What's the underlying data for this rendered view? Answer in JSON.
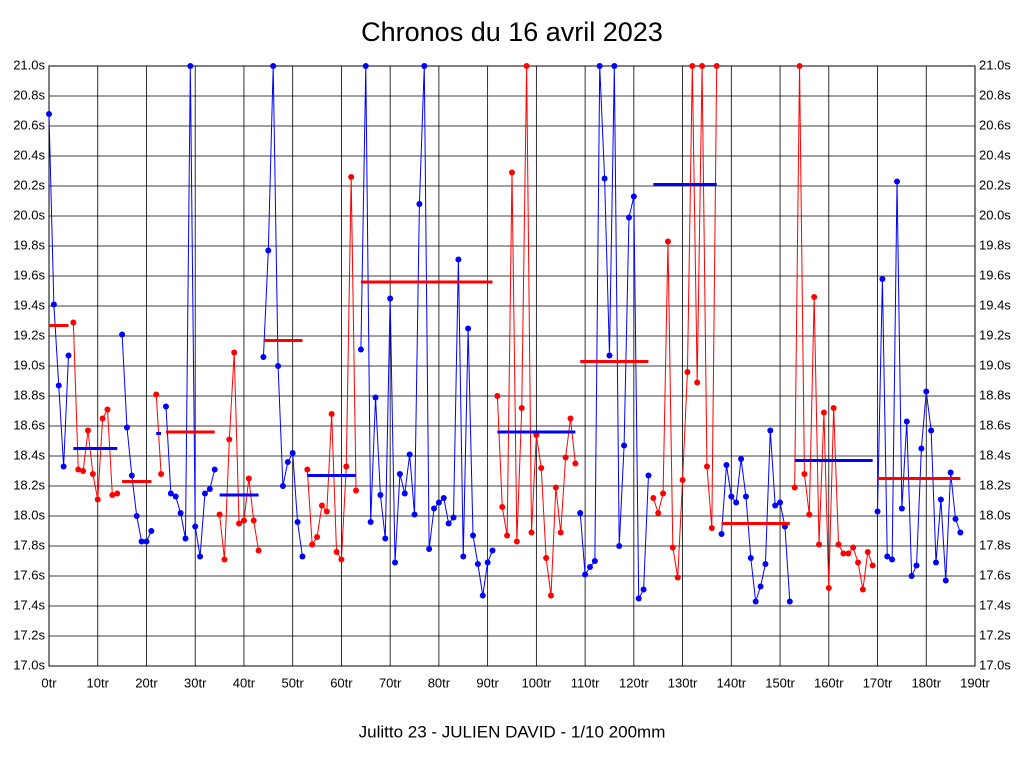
{
  "chart_data": {
    "type": "line",
    "title": "Chronos du 16 avril 2023",
    "footer": "Julitto 23 - JULIEN DAVID - 1/10 200mm",
    "xlim": [
      0,
      190
    ],
    "ylim": [
      17,
      21
    ],
    "xticks": [
      {
        "value": 0,
        "label": "0tr"
      },
      {
        "value": 10,
        "label": "10tr"
      },
      {
        "value": 20,
        "label": "20tr"
      },
      {
        "value": 30,
        "label": "30tr"
      },
      {
        "value": 40,
        "label": "40tr"
      },
      {
        "value": 50,
        "label": "50tr"
      },
      {
        "value": 60,
        "label": "60tr"
      },
      {
        "value": 70,
        "label": "70tr"
      },
      {
        "value": 80,
        "label": "80tr"
      },
      {
        "value": 90,
        "label": "90tr"
      },
      {
        "value": 100,
        "label": "100tr"
      },
      {
        "value": 110,
        "label": "110tr"
      },
      {
        "value": 120,
        "label": "120tr"
      },
      {
        "value": 130,
        "label": "130tr"
      },
      {
        "value": 140,
        "label": "140tr"
      },
      {
        "value": 150,
        "label": "150tr"
      },
      {
        "value": 160,
        "label": "160tr"
      },
      {
        "value": 170,
        "label": "170tr"
      },
      {
        "value": 180,
        "label": "180tr"
      },
      {
        "value": 190,
        "label": "190tr"
      }
    ],
    "yticks": [
      {
        "value": 17,
        "label": "17.0s"
      },
      {
        "value": 17.2,
        "label": "17.2s"
      },
      {
        "value": 17.4,
        "label": "17.4s"
      },
      {
        "value": 17.6,
        "label": "17.6s"
      },
      {
        "value": 17.8,
        "label": "17.8s"
      },
      {
        "value": 18,
        "label": "18.0s"
      },
      {
        "value": 18.2,
        "label": "18.2s"
      },
      {
        "value": 18.4,
        "label": "18.4s"
      },
      {
        "value": 18.6,
        "label": "18.6s"
      },
      {
        "value": 18.8,
        "label": "18.8s"
      },
      {
        "value": 19,
        "label": "19.0s"
      },
      {
        "value": 19.2,
        "label": "19.2s"
      },
      {
        "value": 19.4,
        "label": "19.4s"
      },
      {
        "value": 19.6,
        "label": "19.6s"
      },
      {
        "value": 19.8,
        "label": "19.8s"
      },
      {
        "value": 20,
        "label": "20.0s"
      },
      {
        "value": 20.2,
        "label": "20.2s"
      },
      {
        "value": 20.4,
        "label": "20.4s"
      },
      {
        "value": 20.6,
        "label": "20.6s"
      },
      {
        "value": 20.8,
        "label": "20.8s"
      },
      {
        "value": 21,
        "label": "21.0s"
      }
    ],
    "grid": true,
    "series": [
      {
        "color": "#0000ff",
        "mean_color": "#ff0000",
        "mean": 19.27,
        "x": [
          0,
          1,
          2,
          3,
          4
        ],
        "values": [
          20.68,
          19.41,
          18.87,
          18.33,
          19.07
        ]
      },
      {
        "color": "#ff0000",
        "mean_color": "#0000ff",
        "mean": 18.45,
        "x": [
          5,
          6,
          7,
          8,
          9,
          10,
          11,
          12,
          13,
          14
        ],
        "values": [
          19.29,
          18.31,
          18.3,
          18.57,
          18.28,
          18.11,
          18.65,
          18.71,
          18.14,
          18.15
        ]
      },
      {
        "color": "#0000ff",
        "mean_color": "#ff0000",
        "mean": 18.23,
        "x": [
          15,
          16,
          17,
          18,
          19,
          20,
          21
        ],
        "values": [
          19.21,
          18.59,
          18.27,
          18.0,
          17.83,
          17.83,
          17.9
        ]
      },
      {
        "color": "#ff0000",
        "mean_color": "#0000ff",
        "mean": 18.55,
        "x": [
          22,
          23
        ],
        "values": [
          18.81,
          18.28
        ]
      },
      {
        "color": "#0000ff",
        "mean_color": "#ff0000",
        "mean": 18.56,
        "x": [
          24,
          25,
          26,
          27,
          28,
          29,
          30,
          31,
          32,
          33,
          34
        ],
        "values": [
          18.73,
          18.15,
          18.13,
          18.02,
          17.85,
          21.0,
          17.93,
          17.73,
          18.15,
          18.18,
          18.31
        ]
      },
      {
        "color": "#ff0000",
        "mean_color": "#0000ff",
        "mean": 18.14,
        "x": [
          35,
          36,
          37,
          38,
          39,
          40,
          41,
          42,
          43
        ],
        "values": [
          18.01,
          17.71,
          18.51,
          19.09,
          17.95,
          17.97,
          18.25,
          17.97,
          17.77
        ]
      },
      {
        "color": "#0000ff",
        "mean_color": "#ff0000",
        "mean": 19.17,
        "x": [
          44,
          45,
          46,
          47,
          48,
          49,
          50,
          51,
          52
        ],
        "values": [
          19.06,
          19.77,
          21.0,
          19.0,
          18.2,
          18.36,
          18.42,
          17.96,
          17.73
        ]
      },
      {
        "color": "#ff0000",
        "mean_color": "#0000ff",
        "mean": 18.27,
        "x": [
          53,
          54,
          55,
          56,
          57,
          58,
          59,
          60,
          61,
          62,
          63
        ],
        "values": [
          18.31,
          17.81,
          17.86,
          18.07,
          18.03,
          18.68,
          17.76,
          17.71,
          18.33,
          20.26,
          18.17
        ]
      },
      {
        "color": "#0000ff",
        "mean_color": "#ff0000",
        "mean": 19.56,
        "x": [
          64,
          65,
          66,
          67,
          68,
          69,
          70,
          71,
          72,
          73,
          74,
          75,
          76,
          77,
          78,
          79,
          80,
          81,
          82,
          83,
          84,
          85,
          86,
          87,
          88,
          89,
          90,
          91
        ],
        "values": [
          19.11,
          21.0,
          17.96,
          18.79,
          18.14,
          17.85,
          19.45,
          17.69,
          18.28,
          18.15,
          18.41,
          18.01,
          20.08,
          21.0,
          17.78,
          18.05,
          18.09,
          18.12,
          17.95,
          17.99,
          19.71,
          17.73,
          19.25,
          17.87,
          17.68,
          17.47,
          17.69,
          17.77
        ]
      },
      {
        "color": "#ff0000",
        "mean_color": "#0000ff",
        "mean": 18.56,
        "x": [
          92,
          93,
          94,
          95,
          96,
          97,
          98,
          99,
          100,
          101,
          102,
          103,
          104,
          105,
          106,
          107,
          108
        ],
        "values": [
          18.8,
          18.06,
          17.87,
          20.29,
          17.83,
          18.72,
          21.0,
          17.89,
          18.54,
          18.32,
          17.72,
          17.47,
          18.19,
          17.89,
          18.39,
          18.65,
          18.35
        ]
      },
      {
        "color": "#0000ff",
        "mean_color": "#ff0000",
        "mean": 19.03,
        "x": [
          109,
          110,
          111,
          112,
          113,
          114,
          115,
          116,
          117,
          118,
          119,
          120,
          121,
          122,
          123
        ],
        "values": [
          18.02,
          17.61,
          17.66,
          17.7,
          21.0,
          20.25,
          19.07,
          21.0,
          17.8,
          18.47,
          19.99,
          20.13,
          17.45,
          17.51,
          18.27
        ]
      },
      {
        "color": "#ff0000",
        "mean_color": "#0000ff",
        "mean": 20.21,
        "x": [
          124,
          125,
          126,
          127,
          128,
          129,
          130,
          131,
          132,
          133,
          134,
          135,
          136,
          137
        ],
        "values": [
          18.12,
          18.02,
          18.15,
          19.83,
          17.79,
          17.59,
          18.24,
          18.96,
          21.0,
          18.89,
          21.0,
          18.33,
          17.92,
          21.0
        ]
      },
      {
        "color": "#0000ff",
        "mean_color": "#ff0000",
        "mean": 17.95,
        "x": [
          138,
          139,
          140,
          141,
          142,
          143,
          144,
          145,
          146,
          147,
          148,
          149,
          150,
          151,
          152
        ],
        "values": [
          17.88,
          18.34,
          18.13,
          18.09,
          18.38,
          18.13,
          17.72,
          17.43,
          17.53,
          17.68,
          18.57,
          18.07,
          18.09,
          17.93,
          17.43
        ]
      },
      {
        "color": "#ff0000",
        "mean_color": "#0000ff",
        "mean": 18.37,
        "x": [
          153,
          154,
          155,
          156,
          157,
          158,
          159,
          160,
          161,
          162,
          163,
          164,
          165,
          166,
          167,
          168,
          169
        ],
        "values": [
          18.19,
          21.0,
          18.28,
          18.01,
          19.46,
          17.81,
          18.69,
          17.52,
          18.72,
          17.81,
          17.75,
          17.75,
          17.79,
          17.69,
          17.51,
          17.76,
          17.67
        ]
      },
      {
        "color": "#0000ff",
        "mean_color": "#ff0000",
        "mean": 18.25,
        "x": [
          170,
          171,
          172,
          173,
          174,
          175,
          176,
          177,
          178,
          179,
          180,
          181,
          182,
          183,
          184,
          185,
          186,
          187
        ],
        "values": [
          18.03,
          19.58,
          17.73,
          17.71,
          20.23,
          18.05,
          18.63,
          17.6,
          17.67,
          18.45,
          18.83,
          18.57,
          17.69,
          18.11,
          17.57,
          18.29,
          17.98,
          17.89
        ]
      }
    ]
  }
}
